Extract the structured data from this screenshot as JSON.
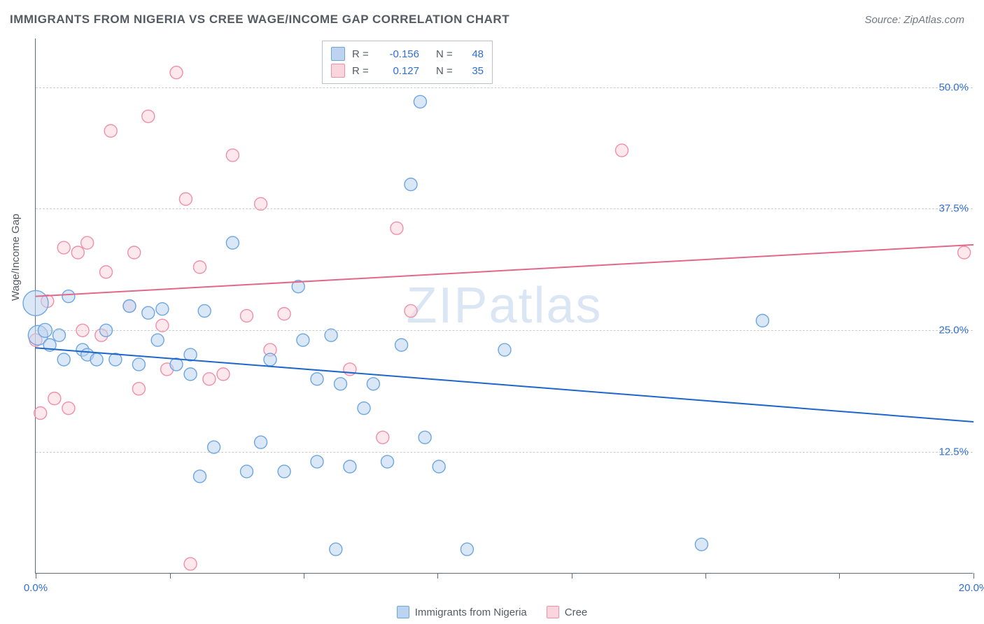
{
  "title": "IMMIGRANTS FROM NIGERIA VS CREE WAGE/INCOME GAP CORRELATION CHART",
  "source": "Source: ZipAtlas.com",
  "y_axis_title": "Wage/Income Gap",
  "watermark_a": "ZIP",
  "watermark_b": "atlas",
  "colors": {
    "series_a_fill": "#bcd4ef",
    "series_a_stroke": "#6ca6e2",
    "series_a_line": "#1e66c9",
    "series_b_fill": "#fbd5de",
    "series_b_stroke": "#ef8fa8",
    "series_b_line": "#e26889",
    "grid": "#c9ccd0",
    "axis": "#5e6a78",
    "tick_text": "#2f6fd0",
    "text": "#555b62",
    "background": "#ffffff"
  },
  "chart": {
    "type": "scatter",
    "xlim": [
      0,
      20
    ],
    "ylim": [
      0,
      55
    ],
    "x_ticks": [
      0,
      2.86,
      5.71,
      8.57,
      11.43,
      14.29,
      17.14,
      20
    ],
    "x_tick_labels": [
      "0.0%",
      "",
      "",
      "",
      "",
      "",
      "",
      "20.0%"
    ],
    "y_gridlines": [
      12.5,
      25.0,
      37.5,
      50.0
    ],
    "y_tick_labels": [
      "12.5%",
      "25.0%",
      "37.5%",
      "50.0%"
    ],
    "marker_radius": 9,
    "marker_opacity": 0.55,
    "trendlines": {
      "a": {
        "y_at_x0": 23.2,
        "y_at_x20": 15.6
      },
      "b": {
        "y_at_x0": 28.5,
        "y_at_x20": 33.8
      }
    }
  },
  "legend_top": {
    "rows": [
      {
        "swatch": "a",
        "r_label": "R =",
        "r_value": "-0.156",
        "n_label": "N =",
        "n_value": "48"
      },
      {
        "swatch": "b",
        "r_label": "R =",
        "r_value": "0.127",
        "n_label": "N =",
        "n_value": "35"
      }
    ]
  },
  "legend_bottom": [
    {
      "swatch": "a",
      "label": "Immigrants from Nigeria"
    },
    {
      "swatch": "b",
      "label": "Cree"
    }
  ],
  "series_a": [
    [
      0.0,
      27.8,
      18
    ],
    [
      0.05,
      24.5,
      14
    ],
    [
      0.2,
      25.0,
      10
    ],
    [
      0.3,
      23.5,
      9
    ],
    [
      0.5,
      24.5,
      9
    ],
    [
      0.6,
      22.0,
      9
    ],
    [
      0.7,
      28.5,
      9
    ],
    [
      1.0,
      23.0,
      9
    ],
    [
      1.1,
      22.5,
      9
    ],
    [
      1.3,
      22.0,
      9
    ],
    [
      1.5,
      25.0,
      9
    ],
    [
      1.7,
      22.0,
      9
    ],
    [
      2.0,
      27.5,
      9
    ],
    [
      2.2,
      21.5,
      9
    ],
    [
      2.4,
      26.8,
      9
    ],
    [
      2.6,
      24.0,
      9
    ],
    [
      2.7,
      27.2,
      9
    ],
    [
      3.0,
      21.5,
      9
    ],
    [
      3.3,
      20.5,
      9
    ],
    [
      3.3,
      22.5,
      9
    ],
    [
      3.5,
      10.0,
      9
    ],
    [
      3.6,
      27.0,
      9
    ],
    [
      3.8,
      13.0,
      9
    ],
    [
      4.2,
      34.0,
      9
    ],
    [
      4.5,
      10.5,
      9
    ],
    [
      4.8,
      13.5,
      9
    ],
    [
      5.0,
      22.0,
      9
    ],
    [
      5.3,
      10.5,
      9
    ],
    [
      5.6,
      29.5,
      9
    ],
    [
      5.7,
      24.0,
      9
    ],
    [
      6.0,
      20.0,
      9
    ],
    [
      6.0,
      11.5,
      9
    ],
    [
      6.3,
      24.5,
      9
    ],
    [
      6.4,
      2.5,
      9
    ],
    [
      6.5,
      19.5,
      9
    ],
    [
      6.7,
      11.0,
      9
    ],
    [
      7.0,
      17.0,
      9
    ],
    [
      7.2,
      19.5,
      9
    ],
    [
      7.5,
      11.5,
      9
    ],
    [
      7.8,
      23.5,
      9
    ],
    [
      8.0,
      40.0,
      9
    ],
    [
      8.2,
      48.5,
      9
    ],
    [
      8.3,
      14.0,
      9
    ],
    [
      8.6,
      11.0,
      9
    ],
    [
      9.2,
      2.5,
      9
    ],
    [
      10.0,
      23.0,
      9
    ],
    [
      14.2,
      3.0,
      9
    ],
    [
      15.5,
      26.0,
      9
    ]
  ],
  "series_b": [
    [
      0.0,
      24.0,
      9
    ],
    [
      0.1,
      16.5,
      9
    ],
    [
      0.25,
      28.0,
      9
    ],
    [
      0.4,
      18.0,
      9
    ],
    [
      0.6,
      33.5,
      9
    ],
    [
      0.7,
      17.0,
      9
    ],
    [
      0.9,
      33.0,
      9
    ],
    [
      1.0,
      25.0,
      9
    ],
    [
      1.1,
      34.0,
      9
    ],
    [
      1.4,
      24.5,
      9
    ],
    [
      1.5,
      31.0,
      9
    ],
    [
      1.6,
      45.5,
      9
    ],
    [
      2.0,
      27.5,
      9
    ],
    [
      2.1,
      33.0,
      9
    ],
    [
      2.2,
      19.0,
      9
    ],
    [
      2.4,
      47.0,
      9
    ],
    [
      2.7,
      25.5,
      9
    ],
    [
      2.8,
      21.0,
      9
    ],
    [
      3.0,
      51.5,
      9
    ],
    [
      3.2,
      38.5,
      9
    ],
    [
      3.3,
      1.0,
      9
    ],
    [
      3.5,
      31.5,
      9
    ],
    [
      3.7,
      20.0,
      9
    ],
    [
      4.0,
      20.5,
      9
    ],
    [
      4.2,
      43.0,
      9
    ],
    [
      4.5,
      26.5,
      9
    ],
    [
      4.8,
      38.0,
      9
    ],
    [
      5.0,
      23.0,
      9
    ],
    [
      5.3,
      26.7,
      9
    ],
    [
      6.7,
      21.0,
      9
    ],
    [
      7.4,
      14.0,
      9
    ],
    [
      7.7,
      35.5,
      9
    ],
    [
      8.0,
      27.0,
      9
    ],
    [
      12.5,
      43.5,
      9
    ],
    [
      19.8,
      33.0,
      9
    ]
  ]
}
